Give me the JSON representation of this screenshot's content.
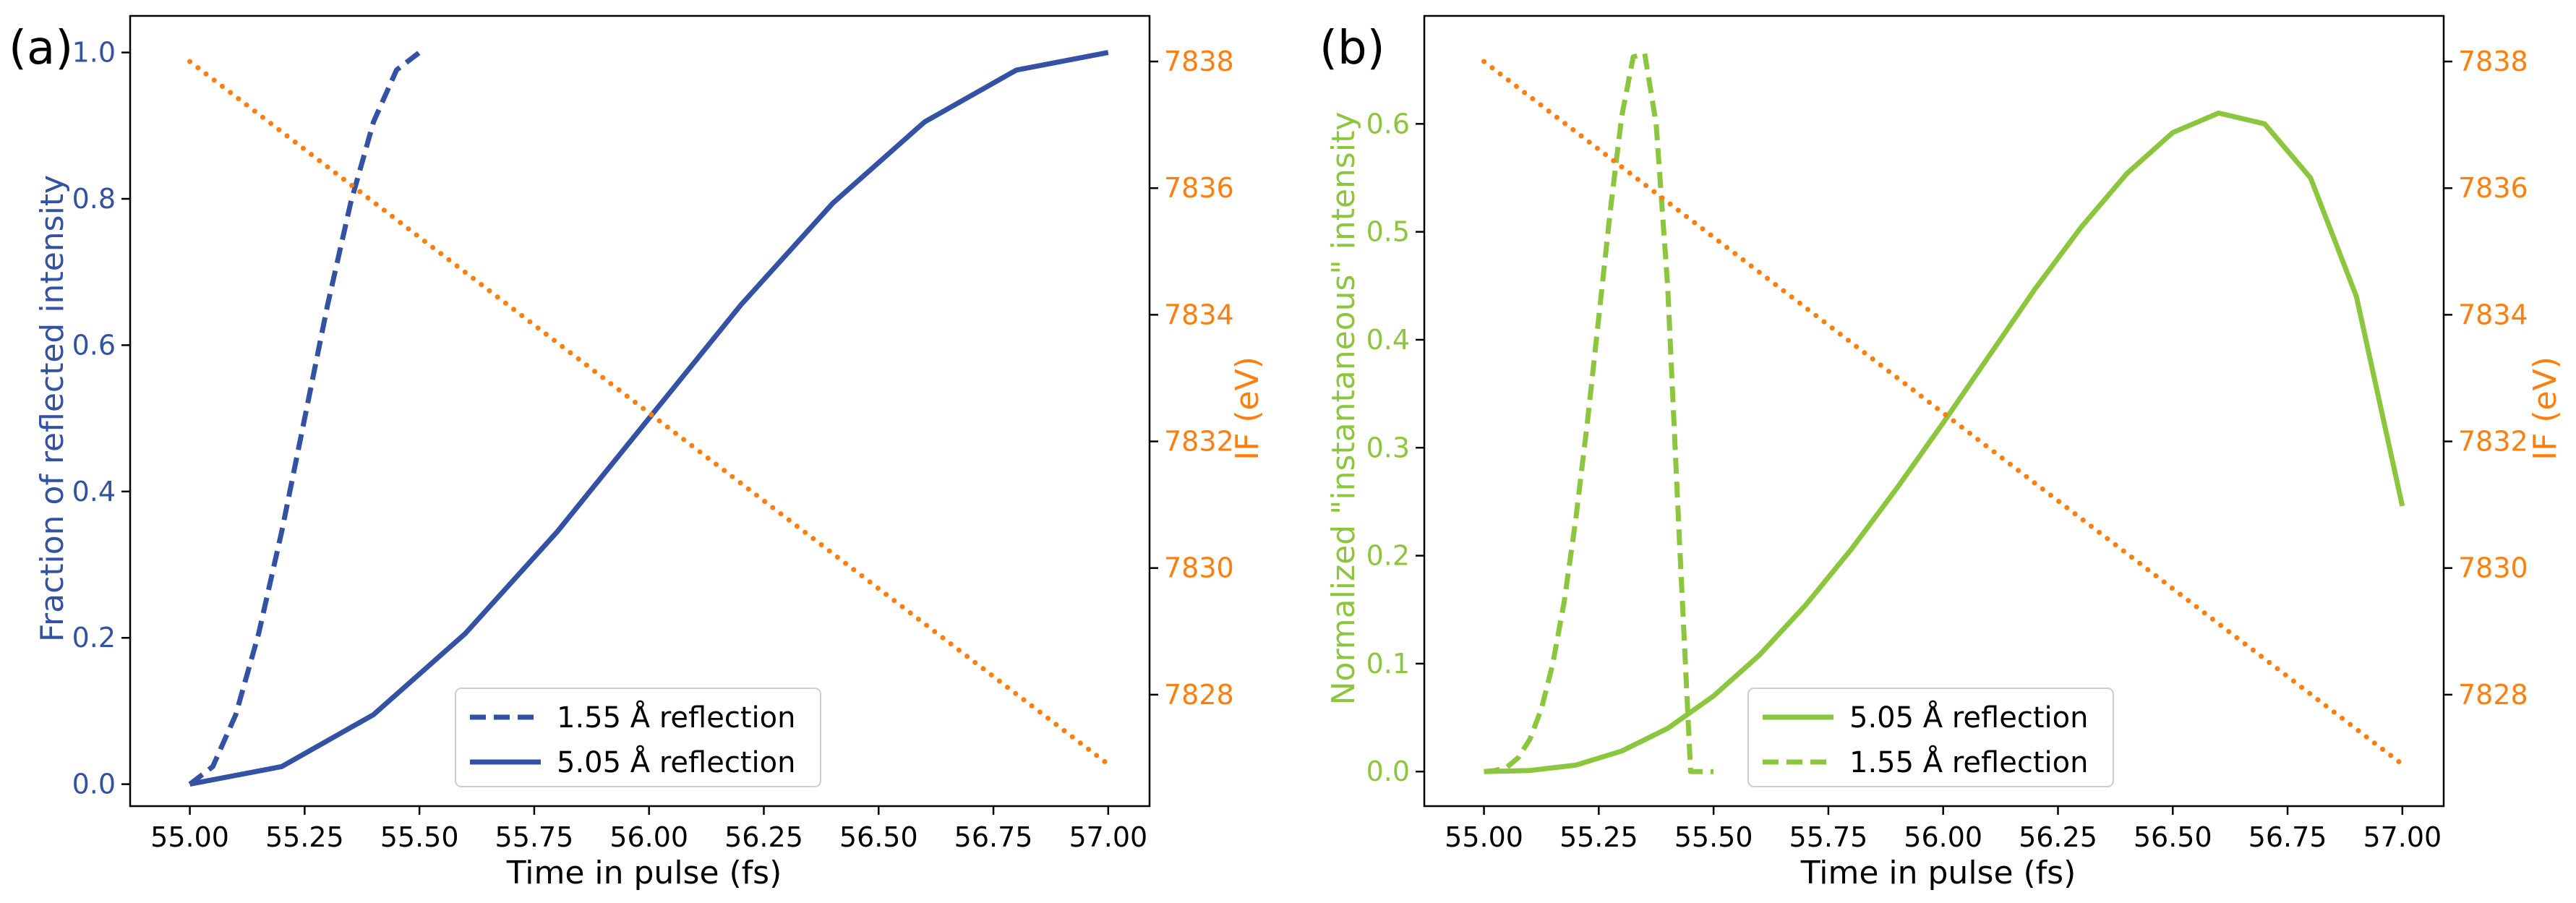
{
  "figure": {
    "panel_labels": [
      "(a)",
      "(b)"
    ],
    "colors": {
      "blue": "#3452a3",
      "orange": "#ff7f0e",
      "green": "#8cc63f",
      "axis": "#000000"
    }
  },
  "chart_data": [
    {
      "panel": "(a)",
      "type": "line",
      "xlabel": "Time in pulse (fs)",
      "ylabel": "Fraction of reflected intensity",
      "y2label": "IF (eV)",
      "xlim": [
        54.87,
        57.09
      ],
      "ylim": [
        -0.03,
        1.05
      ],
      "y2lim": [
        7826.24,
        7838.72
      ],
      "xticks": [
        "55.00",
        "55.25",
        "55.50",
        "55.75",
        "56.00",
        "56.25",
        "56.50",
        "56.75",
        "57.00"
      ],
      "yticks": [
        "0.0",
        "0.2",
        "0.4",
        "0.6",
        "0.8",
        "1.0"
      ],
      "y2ticks": [
        "7828",
        "7830",
        "7832",
        "7834",
        "7836",
        "7838"
      ],
      "series": [
        {
          "name": "1.55 Å reflection",
          "axis": "left",
          "style": "dashed",
          "color": "#3452a3",
          "x": [
            55.0,
            55.05,
            55.1,
            55.15,
            55.2,
            55.25,
            55.3,
            55.35,
            55.4,
            55.45,
            55.5
          ],
          "y": [
            0.0,
            0.024,
            0.095,
            0.206,
            0.345,
            0.5,
            0.655,
            0.794,
            0.905,
            0.976,
            1.0
          ]
        },
        {
          "name": "5.05 Å reflection",
          "axis": "left",
          "style": "solid",
          "color": "#3452a3",
          "x": [
            55.0,
            55.2,
            55.4,
            55.6,
            55.8,
            56.0,
            56.2,
            56.4,
            56.6,
            56.8,
            57.0
          ],
          "y": [
            0.0,
            0.024,
            0.095,
            0.206,
            0.345,
            0.5,
            0.655,
            0.794,
            0.905,
            0.976,
            1.0
          ]
        },
        {
          "name": "IF",
          "axis": "right",
          "style": "dotted",
          "color": "#ff7f0e",
          "x": [
            55.0,
            57.0
          ],
          "y": [
            7838.0,
            7826.9
          ]
        }
      ],
      "legend": {
        "position": "bottom-center",
        "entries": [
          "1.55 Å reflection",
          "5.05 Å reflection"
        ]
      }
    },
    {
      "panel": "(b)",
      "type": "line",
      "xlabel": "Time in pulse (fs)",
      "ylabel": "Normalized \"instantaneous\" intensity",
      "y2label": "IF (eV)",
      "xlim": [
        54.87,
        57.09
      ],
      "ylim": [
        -0.032,
        0.7
      ],
      "y2lim": [
        7826.24,
        7838.72
      ],
      "xticks": [
        "55.00",
        "55.25",
        "55.50",
        "55.75",
        "56.00",
        "56.25",
        "56.50",
        "56.75",
        "57.00"
      ],
      "yticks": [
        "0.0",
        "0.1",
        "0.2",
        "0.3",
        "0.4",
        "0.5",
        "0.6"
      ],
      "y2ticks": [
        "7828",
        "7830",
        "7832",
        "7834",
        "7836",
        "7838"
      ],
      "series": [
        {
          "name": "5.05 Å reflection",
          "axis": "left",
          "style": "solid",
          "color": "#8cc63f",
          "x": [
            55.0,
            55.1,
            55.2,
            55.3,
            55.4,
            55.5,
            55.6,
            55.7,
            55.8,
            55.9,
            56.0,
            56.1,
            56.2,
            56.3,
            56.4,
            56.5,
            56.6,
            56.7,
            56.8,
            56.9,
            57.0
          ],
          "y": [
            0.0,
            0.001,
            0.006,
            0.019,
            0.04,
            0.07,
            0.108,
            0.154,
            0.206,
            0.263,
            0.323,
            0.385,
            0.447,
            0.504,
            0.554,
            0.592,
            0.61,
            0.6,
            0.55,
            0.44,
            0.246
          ]
        },
        {
          "name": "1.55 Å reflection",
          "axis": "left",
          "style": "dashed",
          "color": "#8cc63f",
          "x": [
            55.0,
            55.025,
            55.05,
            55.075,
            55.1,
            55.125,
            55.15,
            55.175,
            55.2,
            55.225,
            55.25,
            55.275,
            55.3,
            55.325,
            55.35,
            55.375,
            55.4,
            55.425,
            55.45,
            55.475,
            55.5
          ],
          "y": [
            0.0,
            0.001,
            0.004,
            0.013,
            0.03,
            0.058,
            0.1,
            0.158,
            0.234,
            0.323,
            0.421,
            0.519,
            0.607,
            0.662,
            0.665,
            0.6,
            0.45,
            0.22,
            0.0,
            0.0,
            0.0
          ]
        },
        {
          "name": "IF",
          "axis": "right",
          "style": "dotted",
          "color": "#ff7f0e",
          "x": [
            55.0,
            57.0
          ],
          "y": [
            7838.0,
            7826.9
          ]
        }
      ],
      "legend": {
        "position": "bottom-center",
        "entries": [
          "5.05 Å reflection",
          "1.55 Å reflection"
        ]
      }
    }
  ]
}
